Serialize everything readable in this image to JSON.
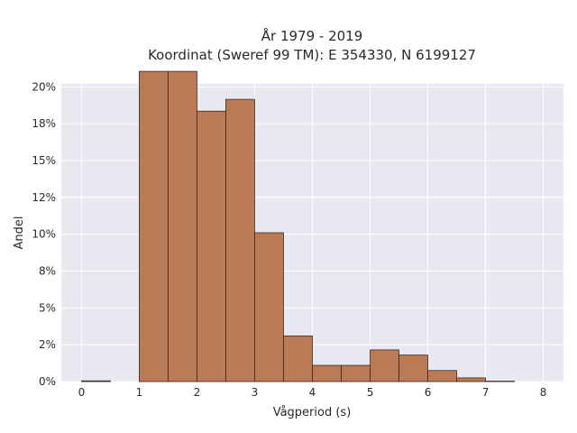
{
  "chart_data": {
    "type": "bar",
    "title_line1": "År 1979 - 2019",
    "title_line2": "Koordinat (Sweref 99 TM): E 354330, N 6199127",
    "xlabel": "Vågperiod (s)",
    "ylabel": "Andel",
    "xlim": [
      -0.35,
      8.35
    ],
    "ylim": [
      0,
      0.202
    ],
    "x_ticks": [
      0,
      1,
      2,
      3,
      4,
      5,
      6,
      7,
      8
    ],
    "x_tick_labels": [
      "0",
      "1",
      "2",
      "3",
      "4",
      "5",
      "6",
      "7",
      "8"
    ],
    "y_ticks": [
      0,
      0.025,
      0.05,
      0.075,
      0.1,
      0.125,
      0.15,
      0.175,
      0.2
    ],
    "y_tick_labels": [
      "0%",
      "2%",
      "5%",
      "8%",
      "10%",
      "12%",
      "15%",
      "18%",
      "20%"
    ],
    "bin_width": 0.5,
    "bins": [
      {
        "start": 0.0,
        "value": 0.0005
      },
      {
        "start": 0.5,
        "value": 0.0
      },
      {
        "start": 1.0,
        "value": 0.2105
      },
      {
        "start": 1.5,
        "value": 0.2105
      },
      {
        "start": 2.0,
        "value": 0.1835
      },
      {
        "start": 2.5,
        "value": 0.1915
      },
      {
        "start": 3.0,
        "value": 0.101
      },
      {
        "start": 3.5,
        "value": 0.031
      },
      {
        "start": 4.0,
        "value": 0.011
      },
      {
        "start": 4.5,
        "value": 0.011
      },
      {
        "start": 5.0,
        "value": 0.0215
      },
      {
        "start": 5.5,
        "value": 0.018
      },
      {
        "start": 6.0,
        "value": 0.0075
      },
      {
        "start": 6.5,
        "value": 0.0025
      },
      {
        "start": 7.0,
        "value": 0.0003
      },
      {
        "start": 7.5,
        "value": 0.0
      }
    ],
    "grid": true,
    "colors": {
      "bar_fill": "#bb7a56",
      "bar_edge": "#3a2a20",
      "plot_bg": "#e8e8f0",
      "grid": "#ffffff"
    }
  }
}
